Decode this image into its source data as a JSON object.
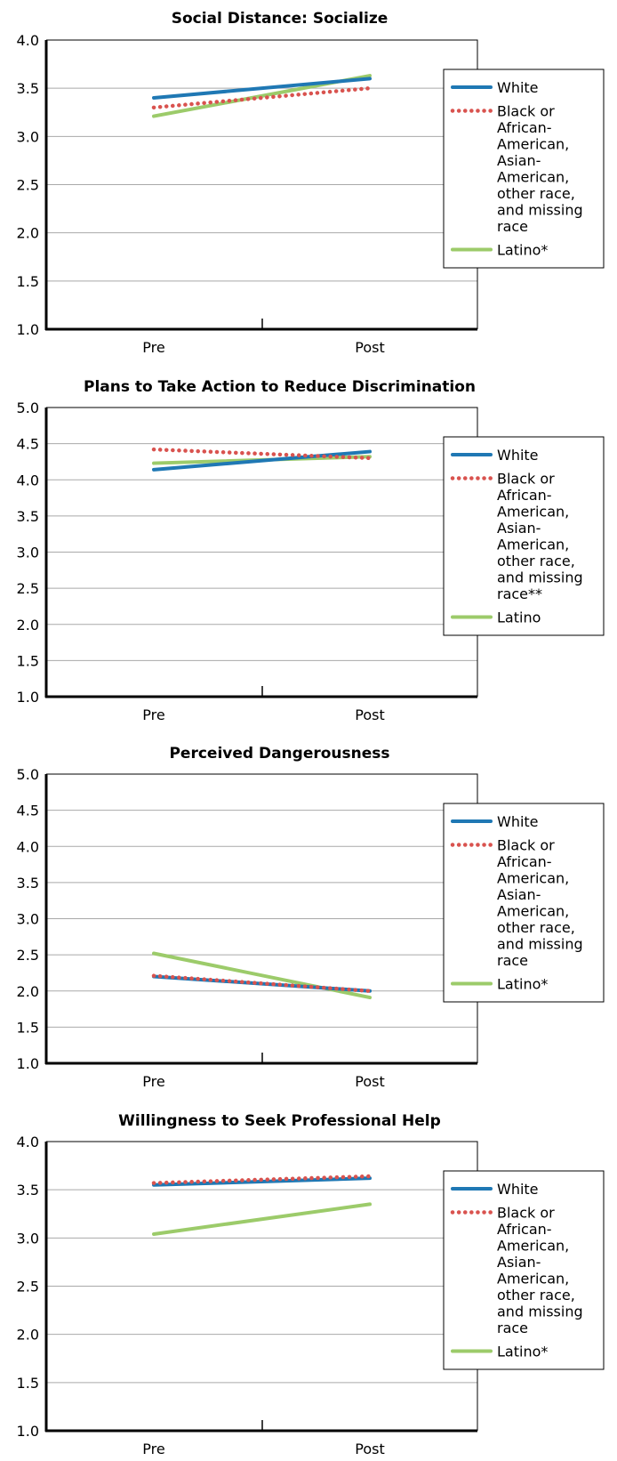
{
  "chart_data": [
    {
      "type": "line",
      "title": "Social Distance: Socialize",
      "categories": [
        "Pre",
        "Post"
      ],
      "ylim": [
        1.0,
        4.0
      ],
      "yticks": [
        "1.0",
        "1.5",
        "2.0",
        "2.5",
        "3.0",
        "3.5",
        "4.0"
      ],
      "grid": true,
      "legend_position": "right",
      "series": [
        {
          "name": "White",
          "values": [
            3.4,
            3.6
          ],
          "color": "#1f78b4",
          "style": "solid"
        },
        {
          "name": "Black or African-American, Asian-American, other race, and missing race",
          "legend_lines": [
            "Black or",
            "African-",
            "American,",
            "Asian-",
            "American,",
            "other race,",
            "and missing",
            "race"
          ],
          "values": [
            3.3,
            3.5
          ],
          "color": "#d9534f",
          "style": "dotted"
        },
        {
          "name": "Latino*",
          "values": [
            3.21,
            3.63
          ],
          "color": "#9ccb6a",
          "style": "solid"
        }
      ]
    },
    {
      "type": "line",
      "title": "Plans to Take Action to Reduce Discrimination",
      "categories": [
        "Pre",
        "Post"
      ],
      "ylim": [
        1.0,
        5.0
      ],
      "yticks": [
        "1.0",
        "1.5",
        "2.0",
        "2.5",
        "3.0",
        "3.5",
        "4.0",
        "4.5",
        "5.0"
      ],
      "grid": true,
      "legend_position": "right",
      "series": [
        {
          "name": "White",
          "values": [
            4.14,
            4.39
          ],
          "color": "#1f78b4",
          "style": "solid"
        },
        {
          "name": "Black or African-American, Asian-American, other race, and missing race**",
          "legend_lines": [
            "Black or",
            "African-",
            "American,",
            "Asian-",
            "American,",
            "other race,",
            "and missing",
            "race**"
          ],
          "values": [
            4.42,
            4.3
          ],
          "color": "#d9534f",
          "style": "dotted"
        },
        {
          "name": "Latino",
          "values": [
            4.23,
            4.32
          ],
          "color": "#9ccb6a",
          "style": "solid"
        }
      ]
    },
    {
      "type": "line",
      "title": "Perceived Dangerousness",
      "categories": [
        "Pre",
        "Post"
      ],
      "ylim": [
        1.0,
        5.0
      ],
      "yticks": [
        "1.0",
        "1.5",
        "2.0",
        "2.5",
        "3.0",
        "3.5",
        "4.0",
        "4.5",
        "5.0"
      ],
      "grid": true,
      "legend_position": "right",
      "series": [
        {
          "name": "White",
          "values": [
            2.2,
            2.0
          ],
          "color": "#1f78b4",
          "style": "solid"
        },
        {
          "name": "Black or African-American, Asian-American, other race, and missing race",
          "legend_lines": [
            "Black or",
            "African-",
            "American,",
            "Asian-",
            "American,",
            "other race,",
            "and missing",
            "race"
          ],
          "values": [
            2.21,
            2.0
          ],
          "color": "#d9534f",
          "style": "dotted"
        },
        {
          "name": "Latino*",
          "values": [
            2.52,
            1.91
          ],
          "color": "#9ccb6a",
          "style": "solid"
        }
      ]
    },
    {
      "type": "line",
      "title": "Willingness to Seek Professional Help",
      "categories": [
        "Pre",
        "Post"
      ],
      "ylim": [
        1.0,
        4.0
      ],
      "yticks": [
        "1.0",
        "1.5",
        "2.0",
        "2.5",
        "3.0",
        "3.5",
        "4.0"
      ],
      "grid": true,
      "legend_position": "right",
      "series": [
        {
          "name": "White",
          "values": [
            3.55,
            3.62
          ],
          "color": "#1f78b4",
          "style": "solid"
        },
        {
          "name": "Black or African-American, Asian-American, other race, and missing race",
          "legend_lines": [
            "Black or",
            "African-",
            "American,",
            "Asian-",
            "American,",
            "other race,",
            "and missing",
            "race"
          ],
          "values": [
            3.57,
            3.64
          ],
          "color": "#d9534f",
          "style": "dotted"
        },
        {
          "name": "Latino*",
          "values": [
            3.04,
            3.35
          ],
          "color": "#9ccb6a",
          "style": "solid"
        }
      ]
    }
  ]
}
